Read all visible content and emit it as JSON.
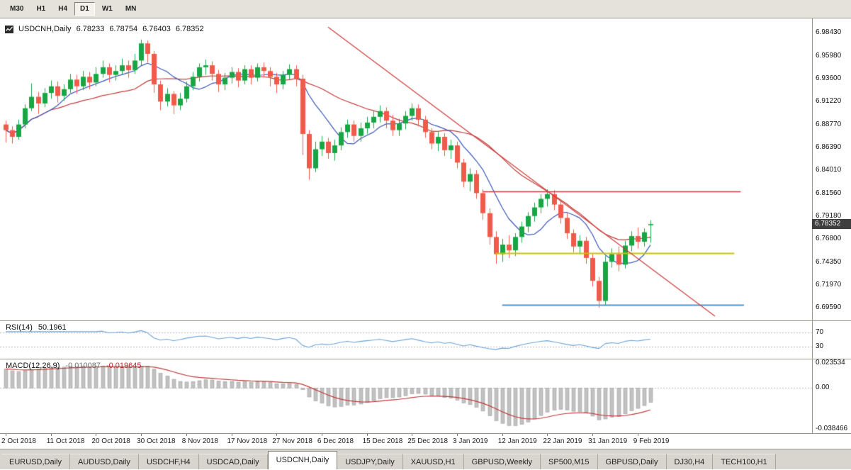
{
  "toolbar": {
    "timeframes": [
      {
        "label": "M30",
        "active": false
      },
      {
        "label": "H1",
        "active": false
      },
      {
        "label": "H4",
        "active": false
      },
      {
        "label": "D1",
        "active": true
      },
      {
        "label": "W1",
        "active": false
      },
      {
        "label": "MN",
        "active": false
      }
    ]
  },
  "chart_header": {
    "symbol": "USDCNH,Daily",
    "open": "6.78233",
    "high": "6.78754",
    "low": "6.76403",
    "close": "6.78352"
  },
  "price_badge": "6.78352",
  "price_axis_labels": [
    "6.98430",
    "6.95980",
    "6.93600",
    "6.91220",
    "6.88770",
    "6.86390",
    "6.84010",
    "6.81560",
    "6.79180",
    "6.76800",
    "6.74350",
    "6.71970",
    "6.69590"
  ],
  "date_axis_labels": [
    "2 Oct 2018",
    "11 Oct 2018",
    "20 Oct 2018",
    "30 Oct 2018",
    "8 Nov 2018",
    "17 Nov 2018",
    "27 Nov 2018",
    "6 Dec 2018",
    "15 Dec 2018",
    "25 Dec 2018",
    "3 Jan 2019",
    "12 Jan 2019",
    "22 Jan 2019",
    "31 Jan 2019",
    "9 Feb 2019"
  ],
  "rsi": {
    "label": "RSI(14)",
    "value": "50.1961",
    "levels": [
      "70",
      "30"
    ]
  },
  "macd": {
    "label": "MACD(12,26,9)",
    "value1": "-0.010087",
    "value2": "-0.019645",
    "axis": [
      "0.023534",
      "0.00",
      "-0.038466"
    ]
  },
  "tabs": [
    {
      "label": "EURUSD,Daily",
      "active": false
    },
    {
      "label": "AUDUSD,Daily",
      "active": false
    },
    {
      "label": "USDCHF,H4",
      "active": false
    },
    {
      "label": "USDCAD,Daily",
      "active": false
    },
    {
      "label": "USDCNH,Daily",
      "active": true
    },
    {
      "label": "USDJPY,Daily",
      "active": false
    },
    {
      "label": "XAUUSD,H1",
      "active": false
    },
    {
      "label": "GBPUSD,Weekly",
      "active": false
    },
    {
      "label": "SP500,M15",
      "active": false
    },
    {
      "label": "GBPUSD,Daily",
      "active": false
    },
    {
      "label": "DJ30,H4",
      "active": false
    },
    {
      "label": "TECH100,H1",
      "active": false
    }
  ],
  "colors": {
    "bull_candle": "#17a643",
    "bear_candle": "#f05a4a",
    "ma_fast": "#3a55b5",
    "ma_slow": "#c03a3a",
    "rsi_line": "#6ba3d6",
    "macd_hist": "#c2c2c2",
    "macd_signal": "#c03a3a",
    "hline_red": "#cc3b3b",
    "hline_yellow": "#c9c400",
    "hline_blue": "#4f94cd",
    "level_dotted": "#bdbdbd",
    "badge_bg": "#3f3f3f"
  },
  "chart_data": {
    "type": "candlestick",
    "symbol": "USDCNH",
    "timeframe": "Daily",
    "last_ohlc": {
      "open": 6.78233,
      "high": 6.78754,
      "low": 6.76403,
      "close": 6.78352
    },
    "scale": {
      "price_top": 6.9843,
      "price_bottom": 6.6959
    },
    "label_indices": [
      0,
      7,
      14,
      21,
      28,
      35,
      42,
      49,
      56,
      63,
      70,
      77,
      84,
      91,
      98
    ],
    "ma_fast_period": 8,
    "ma_slow_period": 21,
    "rsi_period": 14,
    "macd_params": [
      12,
      26,
      9
    ],
    "hlines": [
      {
        "price": 6.818,
        "color": "hline_red",
        "from": 74,
        "to": 114,
        "width": 1.4
      },
      {
        "price": 6.7535,
        "color": "hline_yellow",
        "from": 76,
        "to": 113,
        "width": 2
      },
      {
        "price": 6.699,
        "color": "hline_blue",
        "from": 77,
        "to": 114.5,
        "width": 2
      }
    ],
    "trendline": {
      "from_index": 50,
      "from_price": 6.99,
      "to_index": 110,
      "to_price": 6.687,
      "color": "hline_red",
      "width": 1.2
    },
    "candles": [
      [
        6.888,
        6.892,
        6.869,
        6.882
      ],
      [
        6.882,
        6.886,
        6.868,
        6.875
      ],
      [
        6.875,
        6.893,
        6.872,
        6.888
      ],
      [
        6.888,
        6.909,
        6.884,
        6.905
      ],
      [
        6.905,
        6.931,
        6.902,
        6.917
      ],
      [
        6.917,
        6.922,
        6.899,
        6.91
      ],
      [
        6.91,
        6.926,
        6.906,
        6.921
      ],
      [
        6.921,
        6.934,
        6.915,
        6.928
      ],
      [
        6.928,
        6.933,
        6.911,
        6.918
      ],
      [
        6.918,
        6.93,
        6.913,
        6.925
      ],
      [
        6.925,
        6.941,
        6.921,
        6.935
      ],
      [
        6.935,
        6.94,
        6.92,
        6.928
      ],
      [
        6.928,
        6.944,
        6.924,
        6.938
      ],
      [
        6.938,
        6.943,
        6.925,
        6.932
      ],
      [
        6.932,
        6.948,
        6.928,
        6.941
      ],
      [
        6.941,
        6.955,
        6.937,
        6.948
      ],
      [
        6.948,
        6.952,
        6.932,
        6.94
      ],
      [
        6.94,
        6.95,
        6.934,
        6.944
      ],
      [
        6.944,
        6.957,
        6.94,
        6.95
      ],
      [
        6.95,
        6.955,
        6.937,
        6.945
      ],
      [
        6.945,
        6.962,
        6.941,
        6.955
      ],
      [
        6.955,
        6.977,
        6.95,
        6.973
      ],
      [
        6.973,
        6.976,
        6.953,
        6.962
      ],
      [
        6.962,
        6.965,
        6.921,
        6.93
      ],
      [
        6.93,
        6.934,
        6.903,
        6.912
      ],
      [
        6.912,
        6.926,
        6.907,
        6.92
      ],
      [
        6.92,
        6.923,
        6.899,
        6.908
      ],
      [
        6.908,
        6.921,
        6.903,
        6.915
      ],
      [
        6.915,
        6.933,
        6.911,
        6.928
      ],
      [
        6.928,
        6.943,
        6.924,
        6.938
      ],
      [
        6.938,
        6.952,
        6.933,
        6.948
      ],
      [
        6.948,
        6.956,
        6.94,
        6.95
      ],
      [
        6.95,
        6.954,
        6.934,
        6.941
      ],
      [
        6.941,
        6.945,
        6.922,
        6.93
      ],
      [
        6.93,
        6.942,
        6.924,
        6.937
      ],
      [
        6.937,
        6.948,
        6.931,
        6.943
      ],
      [
        6.943,
        6.947,
        6.927,
        6.934
      ],
      [
        6.934,
        6.95,
        6.93,
        6.946
      ],
      [
        6.946,
        6.95,
        6.93,
        6.937
      ],
      [
        6.937,
        6.952,
        6.933,
        6.948
      ],
      [
        6.948,
        6.953,
        6.937,
        6.944
      ],
      [
        6.944,
        6.948,
        6.928,
        6.938
      ],
      [
        6.938,
        6.942,
        6.921,
        6.93
      ],
      [
        6.93,
        6.944,
        6.925,
        6.94
      ],
      [
        6.94,
        6.951,
        6.935,
        6.946
      ],
      [
        6.946,
        6.95,
        6.928,
        6.936
      ],
      [
        6.936,
        6.94,
        6.856,
        6.878
      ],
      [
        6.878,
        6.882,
        6.83,
        6.842
      ],
      [
        6.842,
        6.87,
        6.838,
        6.862
      ],
      [
        6.862,
        6.876,
        6.855,
        6.87
      ],
      [
        6.87,
        6.874,
        6.852,
        6.858
      ],
      [
        6.858,
        6.872,
        6.85,
        6.866
      ],
      [
        6.866,
        6.885,
        6.861,
        6.88
      ],
      [
        6.88,
        6.893,
        6.874,
        6.888
      ],
      [
        6.888,
        6.892,
        6.87,
        6.876
      ],
      [
        6.876,
        6.89,
        6.87,
        6.884
      ],
      [
        6.884,
        6.896,
        6.878,
        6.89
      ],
      [
        6.89,
        6.902,
        6.884,
        6.896
      ],
      [
        6.896,
        6.908,
        6.89,
        6.902
      ],
      [
        6.902,
        6.906,
        6.884,
        6.892
      ],
      [
        6.892,
        6.898,
        6.876,
        6.882
      ],
      [
        6.882,
        6.894,
        6.876,
        6.889
      ],
      [
        6.889,
        6.902,
        6.883,
        6.897
      ],
      [
        6.897,
        6.91,
        6.892,
        6.905
      ],
      [
        6.905,
        6.909,
        6.886,
        6.893
      ],
      [
        6.893,
        6.897,
        6.874,
        6.88
      ],
      [
        6.88,
        6.884,
        6.862,
        6.868
      ],
      [
        6.868,
        6.88,
        6.86,
        6.875
      ],
      [
        6.875,
        6.879,
        6.855,
        6.861
      ],
      [
        6.861,
        6.872,
        6.852,
        6.866
      ],
      [
        6.866,
        6.87,
        6.842,
        6.848
      ],
      [
        6.848,
        6.852,
        6.822,
        6.828
      ],
      [
        6.828,
        6.842,
        6.818,
        6.836
      ],
      [
        6.836,
        6.84,
        6.81,
        6.816
      ],
      [
        6.816,
        6.82,
        6.788,
        6.795
      ],
      [
        6.795,
        6.8,
        6.762,
        6.77
      ],
      [
        6.77,
        6.776,
        6.742,
        6.752
      ],
      [
        6.752,
        6.768,
        6.744,
        6.762
      ],
      [
        6.762,
        6.772,
        6.748,
        6.756
      ],
      [
        6.756,
        6.774,
        6.75,
        6.77
      ],
      [
        6.77,
        6.786,
        6.764,
        6.781
      ],
      [
        6.781,
        6.796,
        6.775,
        6.792
      ],
      [
        6.792,
        6.806,
        6.786,
        6.801
      ],
      [
        6.801,
        6.815,
        6.795,
        6.81
      ],
      [
        6.81,
        6.82,
        6.802,
        6.815
      ],
      [
        6.815,
        6.819,
        6.798,
        6.804
      ],
      [
        6.804,
        6.808,
        6.784,
        6.79
      ],
      [
        6.79,
        6.795,
        6.768,
        6.774
      ],
      [
        6.774,
        6.778,
        6.754,
        6.76
      ],
      [
        6.76,
        6.772,
        6.752,
        6.766
      ],
      [
        6.766,
        6.77,
        6.742,
        6.748
      ],
      [
        6.748,
        6.752,
        6.718,
        6.724
      ],
      [
        6.724,
        6.728,
        6.696,
        6.703
      ],
      [
        6.703,
        6.75,
        6.698,
        6.744
      ],
      [
        6.744,
        6.758,
        6.738,
        6.752
      ],
      [
        6.752,
        6.76,
        6.734,
        6.741
      ],
      [
        6.741,
        6.766,
        6.737,
        6.761
      ],
      [
        6.761,
        6.776,
        6.755,
        6.771
      ],
      [
        6.771,
        6.78,
        6.758,
        6.765
      ],
      [
        6.765,
        6.779,
        6.76,
        6.775
      ],
      [
        6.78233,
        6.78754,
        6.76403,
        6.78352
      ]
    ]
  }
}
